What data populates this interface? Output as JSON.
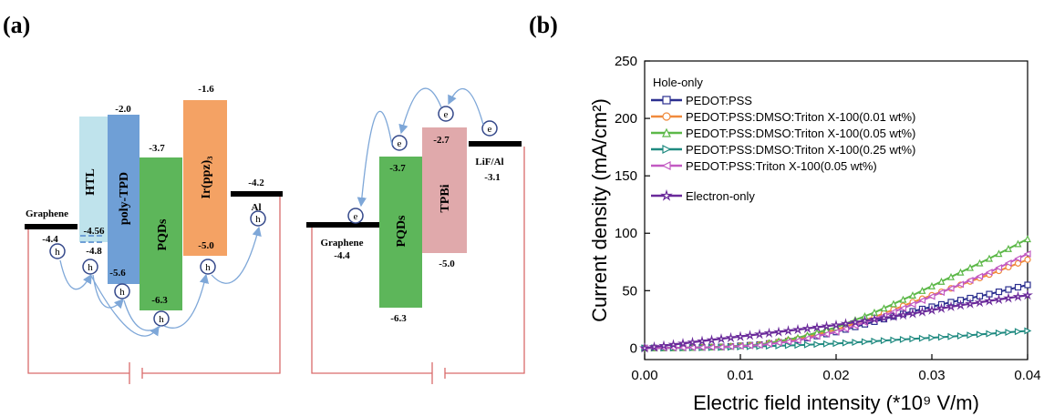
{
  "panel_a": {
    "label": "(a)",
    "hole_only_device": {
      "graphene": {
        "name": "Graphene",
        "value": "-4.4"
      },
      "htl": {
        "name": "HTL",
        "value": "-4.56"
      },
      "polytpd": {
        "name": "poly-TPD",
        "top": "-2.0",
        "bottom": "-5.6",
        "value_left": "-4.8"
      },
      "pqds": {
        "name": "PQDs",
        "top": "-3.7",
        "bottom": "-6.3"
      },
      "irppz": {
        "name": "Ir(ppz)₃",
        "top": "-1.6",
        "bottom": "-5.0"
      },
      "al": {
        "name": "Al",
        "value": "-4.2"
      },
      "carrier": "h"
    },
    "electron_only_device": {
      "graphene": {
        "name": "Graphene",
        "value": "-4.4"
      },
      "pqds": {
        "name": "PQDs",
        "top": "-3.7",
        "bottom": "-6.3"
      },
      "tpbi": {
        "name": "TPBi",
        "top": "-2.7",
        "bottom": "-5.0"
      },
      "lifal": {
        "name": "LiF/Al",
        "value": "-3.1"
      },
      "carrier": "e"
    },
    "colors": {
      "htl": "#bfe3ec",
      "polytpd": "#6f9fd6",
      "pqds": "#5db65a",
      "irppz": "#f4a264",
      "tpbi": "#e0a9ab",
      "arrow": "#7ea7d8",
      "circuit": "#d96b6b"
    }
  },
  "panel_b": {
    "label": "(b)"
  },
  "chart_data": {
    "type": "line",
    "xlabel": "Electric field intensity (*10⁹ V/m)",
    "ylabel": "Current density (mA/cm²)",
    "xlim": [
      0.0,
      0.04
    ],
    "ylim": [
      -10,
      250
    ],
    "xticks": [
      "0.00",
      "0.01",
      "0.02",
      "0.03",
      "0.04"
    ],
    "yticks": [
      "0",
      "50",
      "100",
      "150",
      "200",
      "250"
    ],
    "legend_title": "Hole-only",
    "legend_position": "top-left",
    "series": [
      {
        "name": "PEDOT:PSS",
        "color": "#2b2f8f",
        "marker": "square",
        "x": [
          0.0,
          0.004,
          0.008,
          0.012,
          0.016,
          0.02,
          0.024,
          0.028,
          0.032,
          0.036,
          0.04
        ],
        "y": [
          0,
          0.3,
          1,
          3,
          7,
          14,
          23,
          32,
          40,
          47,
          55
        ]
      },
      {
        "name": "PEDOT:PSS:DMSO:Triton X-100(0.01 wt%)",
        "color": "#f08a3c",
        "marker": "circle",
        "x": [
          0.0,
          0.004,
          0.008,
          0.012,
          0.016,
          0.02,
          0.024,
          0.028,
          0.032,
          0.036,
          0.04
        ],
        "y": [
          0,
          0.3,
          1,
          3,
          8,
          16,
          27,
          40,
          52,
          64,
          77
        ]
      },
      {
        "name": "PEDOT:PSS:DMSO:Triton X-100(0.05 wt%)",
        "color": "#5cb848",
        "marker": "triangle-up",
        "x": [
          0.0,
          0.004,
          0.008,
          0.012,
          0.016,
          0.02,
          0.024,
          0.028,
          0.032,
          0.036,
          0.04
        ],
        "y": [
          0,
          0.3,
          1,
          3,
          9,
          18,
          31,
          46,
          62,
          78,
          95
        ]
      },
      {
        "name": "PEDOT:PSS:DMSO:Triton X-100(0.25 wt%)",
        "color": "#1f8a80",
        "marker": "triangle-right",
        "x": [
          0.0,
          0.004,
          0.008,
          0.012,
          0.016,
          0.02,
          0.024,
          0.028,
          0.032,
          0.036,
          0.04
        ],
        "y": [
          0,
          0.2,
          0.6,
          1.5,
          2.5,
          4,
          6,
          8,
          10,
          12.5,
          15
        ]
      },
      {
        "name": "PEDOT:PSS:Triton X-100(0.05 wt%)",
        "color": "#c25ac2",
        "marker": "triangle-left",
        "x": [
          0.0,
          0.004,
          0.008,
          0.012,
          0.016,
          0.02,
          0.024,
          0.028,
          0.032,
          0.036,
          0.04
        ],
        "y": [
          0,
          0.3,
          0.8,
          2.5,
          6.5,
          14,
          25,
          38,
          52,
          66,
          82
        ]
      },
      {
        "name": "Electron-only",
        "color": "#6a2a9a",
        "marker": "star",
        "x": [
          0.0,
          0.004,
          0.008,
          0.012,
          0.016,
          0.02,
          0.024,
          0.028,
          0.032,
          0.036,
          0.04
        ],
        "y": [
          0,
          4,
          8,
          12,
          16,
          20,
          25,
          30,
          36,
          41,
          46
        ]
      }
    ]
  }
}
